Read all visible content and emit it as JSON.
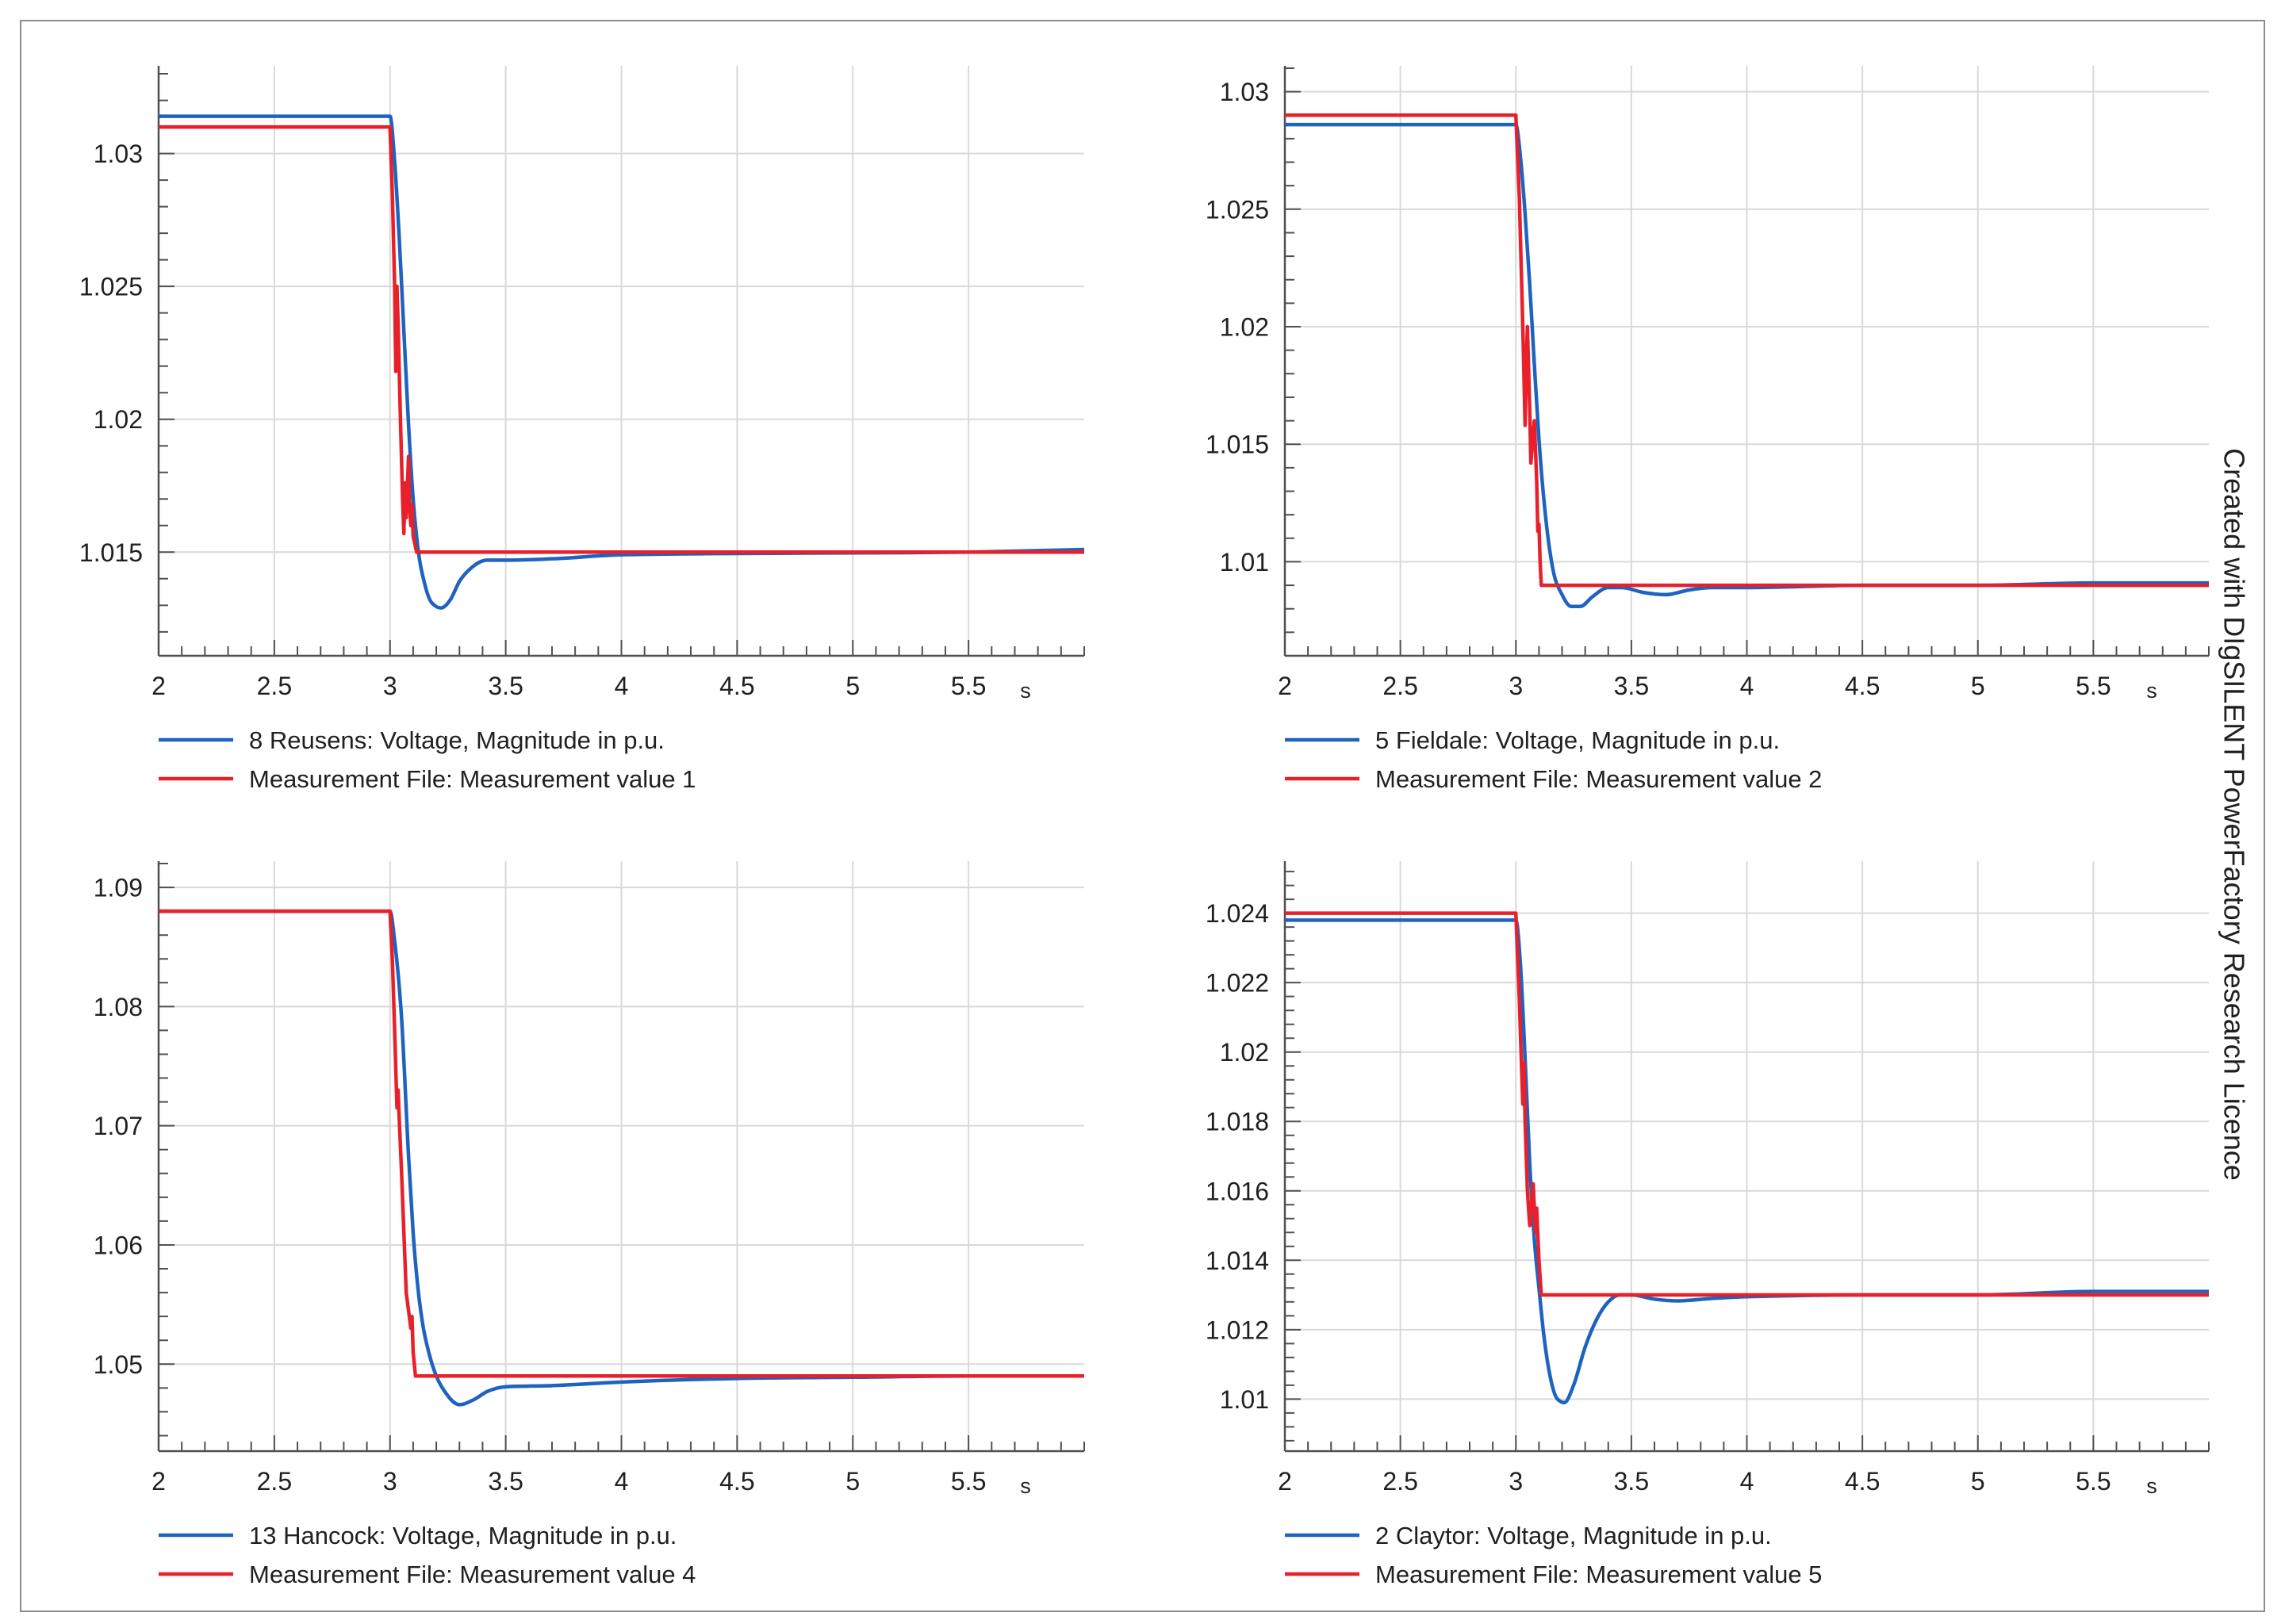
{
  "credit": "Created with DIgSILENT PowerFactory Research Licence",
  "colors": {
    "simulation": "#1e63c0",
    "measurement": "#e8202a",
    "grid": "#d9d9d9",
    "axis": "#505050",
    "border": "#8c8c8c"
  },
  "chart_data": [
    {
      "type": "line",
      "x_unit": "s",
      "xlim": [
        2,
        6
      ],
      "ylim": [
        1.0111,
        1.0333
      ],
      "x_ticks": [
        "2",
        "2.5",
        "3",
        "3.5",
        "4",
        "4.5",
        "5",
        "5.5"
      ],
      "y_ticks": [
        "1.015",
        "1.02",
        "1.025",
        "1.03"
      ],
      "grid": true,
      "series": [
        {
          "name": "8 Reusens: Voltage, Magnitude in p.u.",
          "color": "#1e63c0",
          "x": [
            2,
            3,
            3.02,
            3.04,
            3.06,
            3.08,
            3.1,
            3.12,
            3.15,
            3.18,
            3.22,
            3.26,
            3.3,
            3.35,
            3.42,
            3.5,
            3.7,
            4,
            4.5,
            5,
            5.5,
            6
          ],
          "y": [
            1.0314,
            1.0314,
            1.0297,
            1.0268,
            1.0233,
            1.0198,
            1.017,
            1.0152,
            1.0138,
            1.0131,
            1.0129,
            1.0132,
            1.0139,
            1.0144,
            1.0147,
            1.0147,
            1.01475,
            1.0149,
            1.01495,
            1.01497,
            1.015,
            1.0151
          ]
        },
        {
          "name": "Measurement File: Measurement value 1",
          "color": "#e8202a",
          "x": [
            2,
            3,
            3.01,
            3.02,
            3.025,
            3.03,
            3.035,
            3.045,
            3.055,
            3.06,
            3.065,
            3.07,
            3.08,
            3.085,
            3.09,
            3.095,
            3.1,
            3.115,
            6
          ],
          "y": [
            1.031,
            1.031,
            1.0285,
            1.025,
            1.0218,
            1.025,
            1.0236,
            1.02,
            1.0168,
            1.0157,
            1.0176,
            1.0163,
            1.0186,
            1.0167,
            1.016,
            1.0168,
            1.0156,
            1.015,
            1.015
          ]
        }
      ]
    },
    {
      "type": "line",
      "x_unit": "s",
      "xlim": [
        2,
        6
      ],
      "ylim": [
        1.006,
        1.0311
      ],
      "x_ticks": [
        "2",
        "2.5",
        "3",
        "3.5",
        "4",
        "4.5",
        "5",
        "5.5"
      ],
      "y_ticks": [
        "1.01",
        "1.015",
        "1.02",
        "1.025",
        "1.03"
      ],
      "grid": true,
      "series": [
        {
          "name": "5 Fieldale: Voltage, Magnitude in p.u.",
          "color": "#1e63c0",
          "x": [
            2,
            3,
            3.02,
            3.04,
            3.06,
            3.08,
            3.1,
            3.13,
            3.16,
            3.2,
            3.24,
            3.28,
            3.33,
            3.4,
            3.46,
            3.55,
            3.65,
            3.75,
            3.85,
            4,
            4.5,
            5,
            5.5,
            6
          ],
          "y": [
            1.0286,
            1.0286,
            1.0272,
            1.0248,
            1.0218,
            1.0184,
            1.0152,
            1.0118,
            1.0097,
            1.0086,
            1.0081,
            1.0081,
            1.0085,
            1.0089,
            1.0089,
            1.0087,
            1.0086,
            1.0088,
            1.0089,
            1.0089,
            1.009,
            1.009,
            1.0091,
            1.0091
          ]
        },
        {
          "name": "Measurement File: Measurement value 2",
          "color": "#e8202a",
          "x": [
            2,
            3,
            3.015,
            3.03,
            3.04,
            3.045,
            3.05,
            3.06,
            3.065,
            3.075,
            3.08,
            3.09,
            3.095,
            3.1,
            3.105,
            3.11,
            6
          ],
          "y": [
            1.029,
            1.029,
            1.0255,
            1.02,
            1.0158,
            1.0185,
            1.02,
            1.0165,
            1.0142,
            1.0155,
            1.016,
            1.0135,
            1.0113,
            1.0116,
            1.01,
            1.009,
            1.009
          ]
        }
      ]
    },
    {
      "type": "line",
      "x_unit": "s",
      "xlim": [
        2,
        6
      ],
      "ylim": [
        1.0427,
        1.0922
      ],
      "x_ticks": [
        "2",
        "2.5",
        "3",
        "3.5",
        "4",
        "4.5",
        "5",
        "5.5"
      ],
      "y_ticks": [
        "1.05",
        "1.06",
        "1.07",
        "1.08",
        "1.09"
      ],
      "grid": true,
      "series": [
        {
          "name": "13 Hancock: Voltage, Magnitude in p.u.",
          "color": "#1e63c0",
          "x": [
            2,
            3,
            3.02,
            3.05,
            3.08,
            3.1,
            3.12,
            3.14,
            3.17,
            3.2,
            3.24,
            3.3,
            3.36,
            3.42,
            3.5,
            3.7,
            4,
            4.5,
            5,
            5.5,
            6
          ],
          "y": [
            1.088,
            1.088,
            1.0855,
            1.079,
            1.0675,
            1.061,
            1.0565,
            1.0535,
            1.0508,
            1.049,
            1.0476,
            1.0466,
            1.047,
            1.0477,
            1.0481,
            1.0482,
            1.0485,
            1.0488,
            1.0489,
            1.049,
            1.049
          ]
        },
        {
          "name": "Measurement File: Measurement value 4",
          "color": "#e8202a",
          "x": [
            2,
            3,
            3.01,
            3.02,
            3.03,
            3.035,
            3.04,
            3.05,
            3.06,
            3.07,
            3.08,
            3.09,
            3.095,
            3.1,
            3.11,
            6
          ],
          "y": [
            1.088,
            1.088,
            1.084,
            1.078,
            1.0715,
            1.073,
            1.0705,
            1.066,
            1.061,
            1.056,
            1.0545,
            1.053,
            1.054,
            1.051,
            1.049,
            1.049
          ]
        }
      ]
    },
    {
      "type": "line",
      "x_unit": "s",
      "xlim": [
        2,
        6
      ],
      "ylim": [
        1.0085,
        1.0255
      ],
      "x_ticks": [
        "2",
        "2.5",
        "3",
        "3.5",
        "4",
        "4.5",
        "5",
        "5.5"
      ],
      "y_ticks": [
        "1.01",
        "1.012",
        "1.014",
        "1.016",
        "1.018",
        "1.02",
        "1.022",
        "1.024"
      ],
      "grid": true,
      "series": [
        {
          "name": "2 Claytor: Voltage, Magnitude in p.u.",
          "color": "#1e63c0",
          "x": [
            2,
            3,
            3.02,
            3.04,
            3.06,
            3.08,
            3.1,
            3.12,
            3.15,
            3.18,
            3.21,
            3.25,
            3.3,
            3.35,
            3.4,
            3.45,
            3.5,
            3.6,
            3.7,
            3.85,
            4,
            4.5,
            5,
            5.5,
            6
          ],
          "y": [
            1.0238,
            1.0238,
            1.0225,
            1.0198,
            1.0168,
            1.0146,
            1.0132,
            1.0119,
            1.0106,
            1.01,
            1.0099,
            1.0104,
            1.0115,
            1.0123,
            1.0128,
            1.013,
            1.013,
            1.01288,
            1.01283,
            1.0129,
            1.01295,
            1.013,
            1.013,
            1.0131,
            1.0131
          ]
        },
        {
          "name": "Measurement File: Measurement value 5",
          "color": "#e8202a",
          "x": [
            2,
            3,
            3.015,
            3.03,
            3.035,
            3.04,
            3.05,
            3.06,
            3.07,
            3.075,
            3.085,
            3.09,
            3.1,
            3.11,
            6
          ],
          "y": [
            1.024,
            1.024,
            1.0215,
            1.0185,
            1.0197,
            1.018,
            1.016,
            1.015,
            1.0158,
            1.0162,
            1.0148,
            1.0155,
            1.014,
            1.013,
            1.013
          ]
        }
      ]
    }
  ]
}
